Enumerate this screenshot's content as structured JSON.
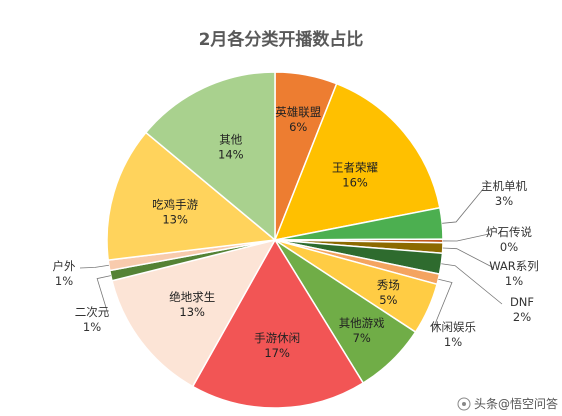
{
  "chart_data": {
    "type": "pie",
    "title": "2月各分类开播数占比",
    "start_angle_deg": 0,
    "direction": "clockwise",
    "slices": [
      {
        "label": "英雄联盟",
        "value": 6,
        "pct": "6%",
        "color": "#ED7D31"
      },
      {
        "label": "王者荣耀",
        "value": 16,
        "pct": "16%",
        "color": "#FFC000"
      },
      {
        "label": "主机单机",
        "value": 3,
        "pct": "3%",
        "color": "#4CAF50"
      },
      {
        "label": "炉石传说",
        "value": 0,
        "pct": "0%",
        "color": "#C05A1F"
      },
      {
        "label": "WAR系列",
        "value": 1,
        "pct": "1%",
        "color": "#8C6A00"
      },
      {
        "label": "DNF",
        "value": 2,
        "pct": "2%",
        "color": "#2E6B2E"
      },
      {
        "label": "休闲娱乐",
        "value": 1,
        "pct": "1%",
        "color": "#F4A460"
      },
      {
        "label": "秀场",
        "value": 5,
        "pct": "5%",
        "color": "#FFCC44"
      },
      {
        "label": "其他游戏",
        "value": 7,
        "pct": "7%",
        "color": "#70AD47"
      },
      {
        "label": "手游休闲",
        "value": 17,
        "pct": "17%",
        "color": "#F25555"
      },
      {
        "label": "绝地求生",
        "value": 13,
        "pct": "13%",
        "color": "#FCE4D6"
      },
      {
        "label": "二次元",
        "value": 1,
        "pct": "1%",
        "color": "#548235"
      },
      {
        "label": "户外",
        "value": 1,
        "pct": "1%",
        "color": "#F8CBAD"
      },
      {
        "label": "吃鸡手游",
        "value": 13,
        "pct": "13%",
        "color": "#FFD35C"
      },
      {
        "label": "其他",
        "value": 14,
        "pct": "14%",
        "color": "#A9D18E"
      }
    ]
  },
  "watermark": "头条@悟空问答"
}
